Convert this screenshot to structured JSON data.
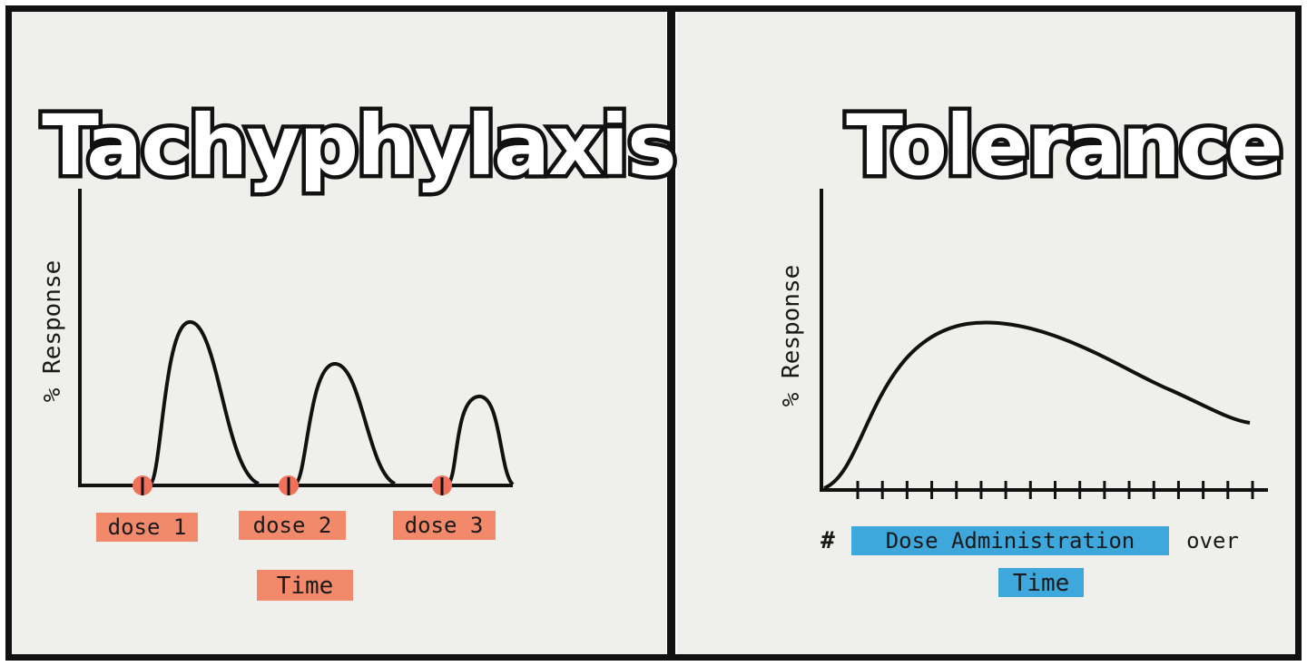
{
  "tachyphylaxis": {
    "title": "Tachyphylaxis",
    "ylabel": "% Response",
    "dose_labels": [
      "dose 1",
      "dose 2",
      "dose 3"
    ],
    "xlabel": "Time",
    "highlight_color": "#f2896b",
    "marker_color": "#f0705a"
  },
  "tolerance": {
    "title": "Tolerance",
    "ylabel": "% Response",
    "xlabel_hash": "#",
    "xlabel_highlighted": "Dose Administration",
    "xlabel_tail": "over",
    "xlabel_time": "Time",
    "highlight_color": "#3ea7dc",
    "tick_count": 17
  }
}
